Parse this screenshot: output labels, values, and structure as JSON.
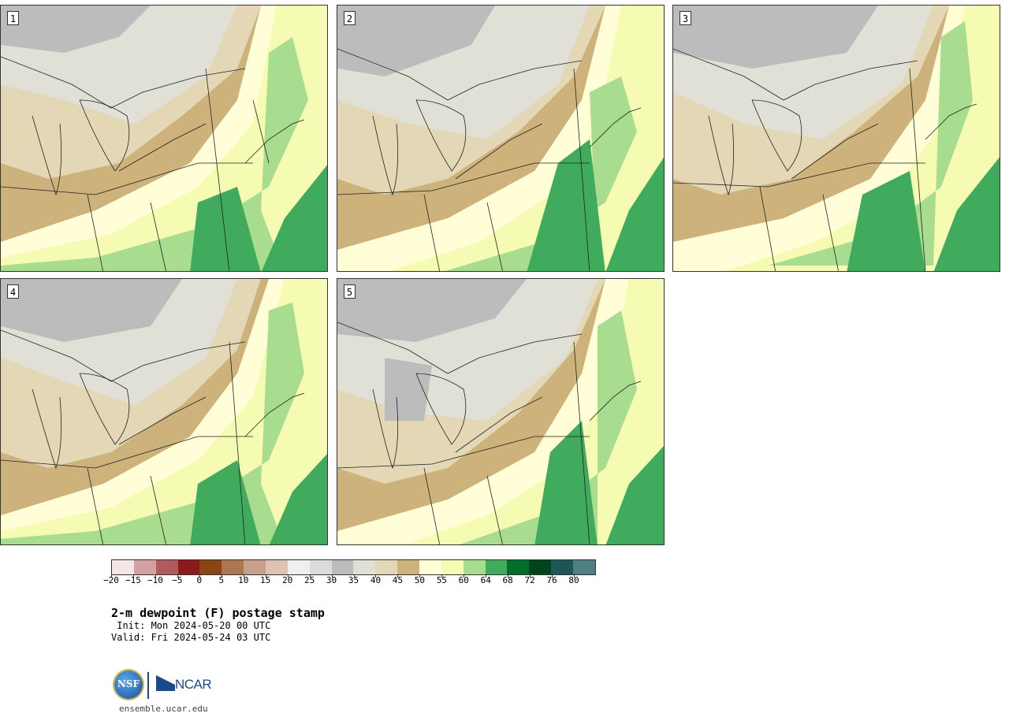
{
  "panels": [
    {
      "label": "1"
    },
    {
      "label": "2"
    },
    {
      "label": "3"
    },
    {
      "label": "4"
    },
    {
      "label": "5"
    }
  ],
  "colorbar": {
    "colors": [
      "#f4e6e6",
      "#d4a1a3",
      "#b05c5f",
      "#8b1a1f",
      "#8a4513",
      "#ad7550",
      "#c5a08a",
      "#dfc2b3",
      "#efefef",
      "#dcdcdc",
      "#bcbcbc",
      "#e0e0d6",
      "#e3d7b5",
      "#cdb27c",
      "#fffed7",
      "#f5fbb3",
      "#a8dc8e",
      "#41ab5d",
      "#006d2c",
      "#00441b",
      "#1e5559",
      "#4f7f80"
    ],
    "ticks": [
      "−20",
      "−15",
      "−10",
      "−5",
      "0",
      "5",
      "10",
      "15",
      "20",
      "25",
      "30",
      "35",
      "40",
      "45",
      "50",
      "55",
      "60",
      "64",
      "68",
      "72",
      "76",
      "80"
    ]
  },
  "title": "2-m dewpoint (F) postage stamp",
  "init_line": " Init: Mon 2024-05-20 00 UTC",
  "valid_line": "Valid: Fri 2024-05-24 03 UTC",
  "logos": {
    "nsf_text": "NSF",
    "ncar_text": "NCAR"
  },
  "url": "ensemble.ucar.edu"
}
